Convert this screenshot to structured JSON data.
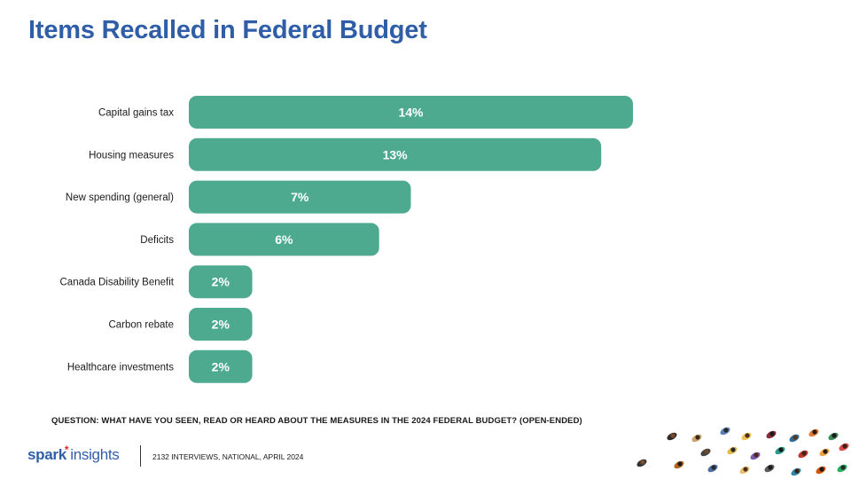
{
  "page": {
    "title": "Items Recalled in Federal Budget",
    "question": "QUESTION: WHAT HAVE YOU SEEN, READ OR HEARD ABOUT THE MEASURES IN THE 2024 FEDERAL BUDGET? (OPEN-ENDED)",
    "footer_note": "2132 INTERVIEWS, NATIONAL, APRIL 2024",
    "logo": {
      "spark": "spark",
      "star": "*",
      "insights": "insights"
    }
  },
  "colors": {
    "bar": "#4daa8f",
    "title": "#2f5ea7",
    "label": "#1a1a1a"
  },
  "chart_data": {
    "type": "bar",
    "orientation": "horizontal",
    "title": "Items Recalled in Federal Budget",
    "categories": [
      "Capital gains tax",
      "Housing measures",
      "New spending (general)",
      "Deficits",
      "Canada Disability Benefit",
      "Carbon rebate",
      "Healthcare investments"
    ],
    "values": [
      14,
      13,
      7,
      6,
      2,
      2,
      2
    ],
    "value_labels": [
      "14%",
      "13%",
      "7%",
      "6%",
      "2%",
      "2%",
      "2%"
    ],
    "unit": "%",
    "xlabel": "",
    "ylabel": "",
    "xlim": [
      0,
      14
    ],
    "grid": false,
    "legend": "none"
  }
}
